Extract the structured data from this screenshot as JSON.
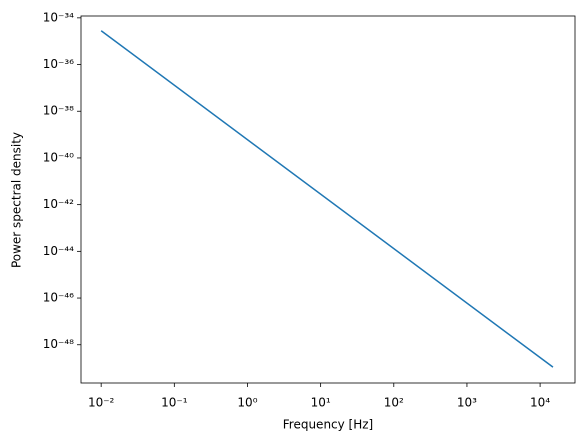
{
  "chart_data": {
    "type": "line",
    "x_label": "Frequency [Hz]",
    "y_label": "Power spectral density",
    "x": [
      0.01,
      15000
    ],
    "series": [
      {
        "color": "#1f77b4",
        "values": [
          2.8e-35,
          1.1e-49
        ]
      }
    ],
    "xscale": "log",
    "yscale": "log",
    "xlim": [
      0.0053,
      30000
    ],
    "ylim": [
      2.3e-50,
      1.2e-34
    ],
    "xticks": [
      {
        "value": 0.01,
        "label": "10⁻²"
      },
      {
        "value": 0.1,
        "label": "10⁻¹"
      },
      {
        "value": 1,
        "label": "10⁰"
      },
      {
        "value": 10,
        "label": "10¹"
      },
      {
        "value": 100,
        "label": "10²"
      },
      {
        "value": 1000,
        "label": "10³"
      },
      {
        "value": 10000,
        "label": "10⁴"
      }
    ],
    "yticks": [
      {
        "value": 1e-48,
        "label": "10⁻⁴⁸"
      },
      {
        "value": 1e-46,
        "label": "10⁻⁴⁶"
      },
      {
        "value": 1e-44,
        "label": "10⁻⁴⁴"
      },
      {
        "value": 1e-42,
        "label": "10⁻⁴²"
      },
      {
        "value": 1e-40,
        "label": "10⁻⁴⁰"
      },
      {
        "value": 1e-38,
        "label": "10⁻³⁸"
      },
      {
        "value": 1e-36,
        "label": "10⁻³⁶"
      },
      {
        "value": 1e-34,
        "label": "10⁻³⁴"
      }
    ],
    "grid": false
  }
}
